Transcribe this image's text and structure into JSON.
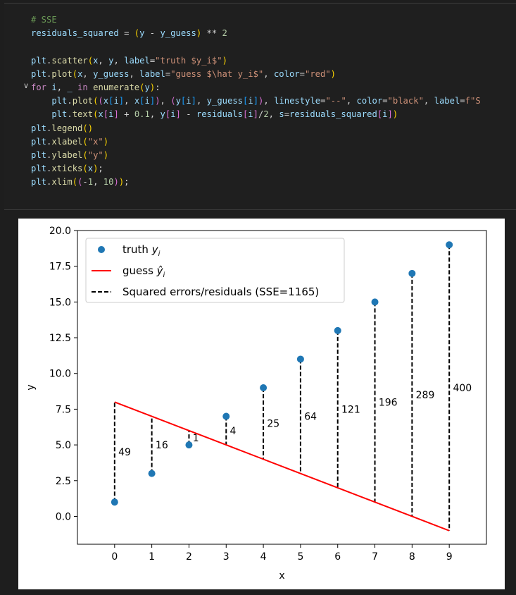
{
  "code_cell": {
    "lines": [
      [
        [
          "c",
          "# SSE"
        ]
      ],
      [
        [
          "v",
          "residuals_squared"
        ],
        [
          "p",
          " = "
        ],
        [
          "b1",
          "("
        ],
        [
          "v",
          "y"
        ],
        [
          "p",
          " - "
        ],
        [
          "v",
          "y_guess"
        ],
        [
          "b1",
          ")"
        ],
        [
          "p",
          " ** "
        ],
        [
          "n",
          "2"
        ]
      ],
      [],
      [
        [
          "v",
          "plt"
        ],
        [
          "p",
          "."
        ],
        [
          "f",
          "scatter"
        ],
        [
          "b1",
          "("
        ],
        [
          "v",
          "x"
        ],
        [
          "p",
          ", "
        ],
        [
          "v",
          "y"
        ],
        [
          "p",
          ", "
        ],
        [
          "v",
          "label"
        ],
        [
          "p",
          "="
        ],
        [
          "s",
          "\"truth $y_i$\""
        ],
        [
          "b1",
          ")"
        ]
      ],
      [
        [
          "v",
          "plt"
        ],
        [
          "p",
          "."
        ],
        [
          "f",
          "plot"
        ],
        [
          "b1",
          "("
        ],
        [
          "v",
          "x"
        ],
        [
          "p",
          ", "
        ],
        [
          "v",
          "y_guess"
        ],
        [
          "p",
          ", "
        ],
        [
          "v",
          "label"
        ],
        [
          "p",
          "="
        ],
        [
          "s",
          "\"guess $\\hat y_i$\""
        ],
        [
          "p",
          ", "
        ],
        [
          "v",
          "color"
        ],
        [
          "p",
          "="
        ],
        [
          "s",
          "\"red\""
        ],
        [
          "b1",
          ")"
        ]
      ],
      [
        [
          "k",
          "for"
        ],
        [
          "p",
          " "
        ],
        [
          "v",
          "i"
        ],
        [
          "p",
          ", "
        ],
        [
          "v",
          "_"
        ],
        [
          "p",
          " "
        ],
        [
          "k",
          "in"
        ],
        [
          "p",
          " "
        ],
        [
          "f",
          "enumerate"
        ],
        [
          "b1",
          "("
        ],
        [
          "v",
          "y"
        ],
        [
          "b1",
          ")"
        ],
        [
          "p",
          ":"
        ]
      ],
      [
        [
          "p",
          "    "
        ],
        [
          "v",
          "plt"
        ],
        [
          "p",
          "."
        ],
        [
          "f",
          "plot"
        ],
        [
          "b1",
          "("
        ],
        [
          "b2",
          "("
        ],
        [
          "v",
          "x"
        ],
        [
          "b3",
          "["
        ],
        [
          "v",
          "i"
        ],
        [
          "b3",
          "]"
        ],
        [
          "p",
          ", "
        ],
        [
          "v",
          "x"
        ],
        [
          "b3",
          "["
        ],
        [
          "v",
          "i"
        ],
        [
          "b3",
          "]"
        ],
        [
          "b2",
          ")"
        ],
        [
          "p",
          ", "
        ],
        [
          "b2",
          "("
        ],
        [
          "v",
          "y"
        ],
        [
          "b3",
          "["
        ],
        [
          "v",
          "i"
        ],
        [
          "b3",
          "]"
        ],
        [
          "p",
          ", "
        ],
        [
          "v",
          "y_guess"
        ],
        [
          "b3",
          "["
        ],
        [
          "v",
          "i"
        ],
        [
          "b3",
          "]"
        ],
        [
          "b2",
          ")"
        ],
        [
          "p",
          ", "
        ],
        [
          "v",
          "linestyle"
        ],
        [
          "p",
          "="
        ],
        [
          "s",
          "\"--\""
        ],
        [
          "p",
          ", "
        ],
        [
          "v",
          "color"
        ],
        [
          "p",
          "="
        ],
        [
          "s",
          "\"black\""
        ],
        [
          "p",
          ", "
        ],
        [
          "v",
          "label"
        ],
        [
          "p",
          "="
        ],
        [
          "s",
          "f\"S"
        ]
      ],
      [
        [
          "p",
          "    "
        ],
        [
          "v",
          "plt"
        ],
        [
          "p",
          "."
        ],
        [
          "f",
          "text"
        ],
        [
          "b1",
          "("
        ],
        [
          "v",
          "x"
        ],
        [
          "b2",
          "["
        ],
        [
          "v",
          "i"
        ],
        [
          "b2",
          "]"
        ],
        [
          "p",
          " + "
        ],
        [
          "n",
          "0.1"
        ],
        [
          "p",
          ", "
        ],
        [
          "v",
          "y"
        ],
        [
          "b2",
          "["
        ],
        [
          "v",
          "i"
        ],
        [
          "b2",
          "]"
        ],
        [
          "p",
          " - "
        ],
        [
          "v",
          "residuals"
        ],
        [
          "b2",
          "["
        ],
        [
          "v",
          "i"
        ],
        [
          "b2",
          "]"
        ],
        [
          "p",
          "/"
        ],
        [
          "n",
          "2"
        ],
        [
          "p",
          ", "
        ],
        [
          "v",
          "s"
        ],
        [
          "p",
          "="
        ],
        [
          "v",
          "residuals_squared"
        ],
        [
          "b2",
          "["
        ],
        [
          "v",
          "i"
        ],
        [
          "b2",
          "]"
        ],
        [
          "b1",
          ")"
        ]
      ],
      [
        [
          "v",
          "plt"
        ],
        [
          "p",
          "."
        ],
        [
          "f",
          "legend"
        ],
        [
          "b1",
          "("
        ],
        [
          "b1",
          ")"
        ]
      ],
      [
        [
          "v",
          "plt"
        ],
        [
          "p",
          "."
        ],
        [
          "f",
          "xlabel"
        ],
        [
          "b1",
          "("
        ],
        [
          "s",
          "\"x\""
        ],
        [
          "b1",
          ")"
        ]
      ],
      [
        [
          "v",
          "plt"
        ],
        [
          "p",
          "."
        ],
        [
          "f",
          "ylabel"
        ],
        [
          "b1",
          "("
        ],
        [
          "s",
          "\"y\""
        ],
        [
          "b1",
          ")"
        ]
      ],
      [
        [
          "v",
          "plt"
        ],
        [
          "p",
          "."
        ],
        [
          "f",
          "xticks"
        ],
        [
          "b1",
          "("
        ],
        [
          "v",
          "x"
        ],
        [
          "b1",
          ")"
        ],
        [
          "p",
          ";"
        ]
      ],
      [
        [
          "v",
          "plt"
        ],
        [
          "p",
          "."
        ],
        [
          "f",
          "xlim"
        ],
        [
          "b1",
          "("
        ],
        [
          "b2",
          "("
        ],
        [
          "p",
          "-"
        ],
        [
          "n",
          "1"
        ],
        [
          "p",
          ", "
        ],
        [
          "n",
          "10"
        ],
        [
          "b2",
          ")"
        ],
        [
          "b1",
          ")"
        ],
        [
          "p",
          ";"
        ]
      ]
    ],
    "fold_icon": "chevron-down-icon"
  },
  "chart_data": {
    "type": "scatter",
    "xlabel": "x",
    "ylabel": "y",
    "xlim": [
      -1,
      10
    ],
    "ylim": [
      -1.95,
      20.0
    ],
    "xticks": [
      0,
      1,
      2,
      3,
      4,
      5,
      6,
      7,
      8,
      9
    ],
    "yticks": [
      0.0,
      2.5,
      5.0,
      7.5,
      10.0,
      12.5,
      15.0,
      17.5,
      20.0
    ],
    "ytick_labels": [
      "0.0",
      "2.5",
      "5.0",
      "7.5",
      "10.0",
      "12.5",
      "15.0",
      "17.5",
      "20.0"
    ],
    "x": [
      0,
      1,
      2,
      3,
      4,
      5,
      6,
      7,
      8,
      9
    ],
    "series": [
      {
        "name": "truth y_i",
        "kind": "scatter",
        "color": "#1f77b4",
        "values": [
          1,
          3,
          5,
          7,
          9,
          11,
          13,
          15,
          17,
          19
        ]
      },
      {
        "name": "guess ŷ_i",
        "kind": "line",
        "color": "#ff0000",
        "values": [
          8,
          7,
          6,
          5,
          4,
          3,
          2,
          1,
          0,
          -1
        ]
      }
    ],
    "residual_labels": [
      "49",
      "16",
      "1",
      "4",
      "25",
      "64",
      "121",
      "196",
      "289",
      "400"
    ],
    "legend": {
      "position": "upper left",
      "entries": [
        {
          "kind": "scatter",
          "main": "truth ",
          "italic": "y",
          "sub": "i"
        },
        {
          "kind": "line",
          "main": "guess ",
          "italic": "ŷ",
          "sub": "i"
        },
        {
          "kind": "dashed",
          "main": "Squared errors/residuals (SSE=1165)"
        }
      ]
    },
    "grid": false,
    "colors": {
      "scatter": "#1f77b4",
      "line": "#ff0000",
      "residual": "#000000"
    }
  }
}
